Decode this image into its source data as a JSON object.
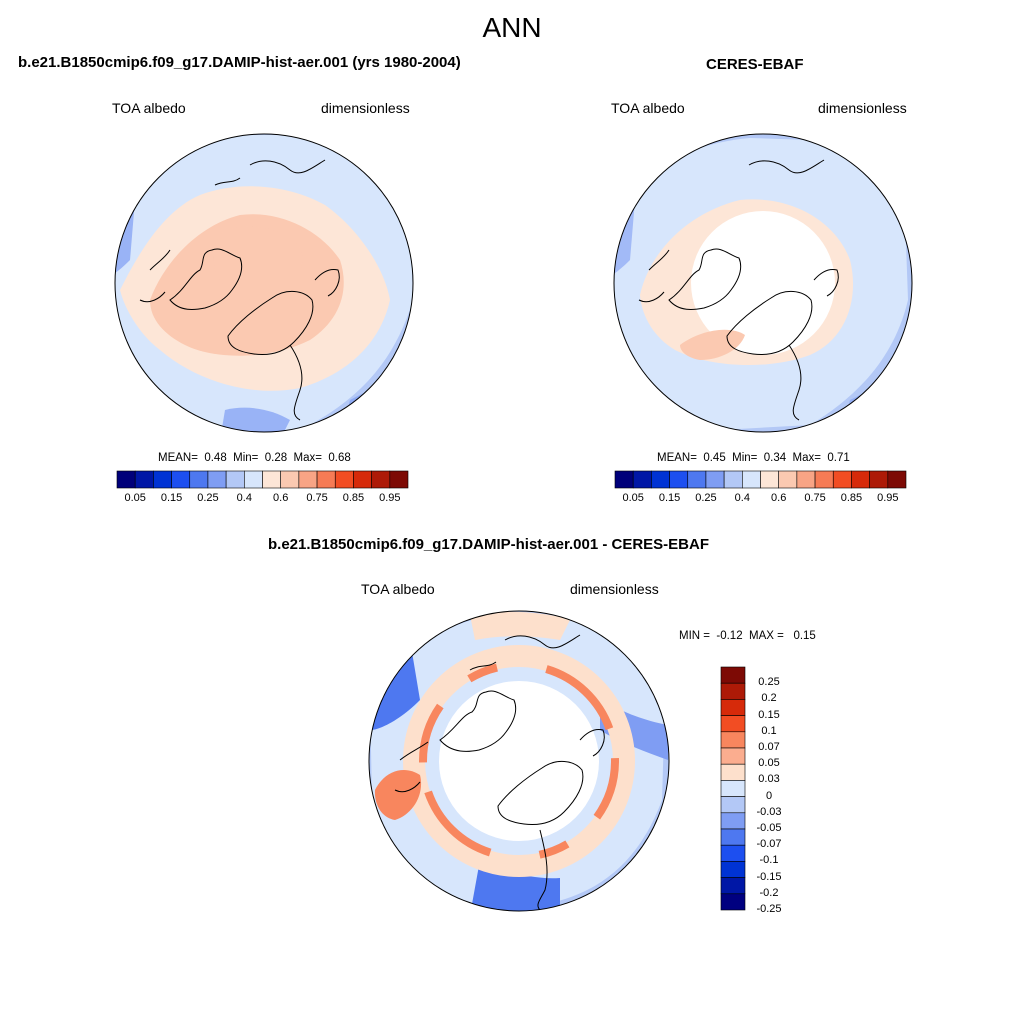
{
  "page": {
    "title": "ANN"
  },
  "panels": [
    {
      "id": "model",
      "title": "b.e21.B1850cmip6.f09_g17.DAMIP-hist-aer.001 (yrs 1980-2004)",
      "left_label": "TOA albedo",
      "right_label": "dimensionless",
      "stats": {
        "mean_label": "MEAN=",
        "mean": "0.48",
        "min_label": "Min=",
        "min": "0.28",
        "max_label": "Max=",
        "max": "0.68"
      },
      "colorbar_ticks": [
        "0.05",
        "0.15",
        "0.25",
        "0.4",
        "0.6",
        "0.75",
        "0.85",
        "0.95"
      ]
    },
    {
      "id": "obs",
      "title": "CERES-EBAF",
      "left_label": "TOA albedo",
      "right_label": "dimensionless",
      "stats": {
        "mean_label": "MEAN=",
        "mean": "0.45",
        "min_label": "Min=",
        "min": "0.34",
        "max_label": "Max=",
        "max": "0.71"
      },
      "colorbar_ticks": [
        "0.05",
        "0.15",
        "0.25",
        "0.4",
        "0.6",
        "0.75",
        "0.85",
        "0.95"
      ]
    },
    {
      "id": "diff",
      "title": "b.e21.B1850cmip6.f09_g17.DAMIP-hist-aer.001 - CERES-EBAF",
      "left_label": "TOA albedo",
      "right_label": "dimensionless",
      "stats": {
        "min_label": "MIN =",
        "min": "-0.12",
        "max_label": "MAX =",
        "max": "0.15"
      },
      "colorbar_ticks": [
        "0.25",
        "0.2",
        "0.15",
        "0.1",
        "0.07",
        "0.05",
        "0.03",
        "0",
        "-0.03",
        "-0.05",
        "-0.07",
        "-0.1",
        "-0.15",
        "-0.2",
        "-0.25"
      ]
    }
  ],
  "colors": {
    "sequential": [
      "#00007a",
      "#0017a6",
      "#0033d4",
      "#1d4ff0",
      "#4e78f0",
      "#7f9df3",
      "#b3c8f6",
      "#d7e6fc",
      "#fde6d7",
      "#fbc9b1",
      "#f8a485",
      "#f67b55",
      "#f24d23",
      "#d62a0a",
      "#ad1a07",
      "#7d0a05"
    ],
    "diverging": [
      "#7d0a05",
      "#ad1a07",
      "#d62a0a",
      "#f24d23",
      "#f8865e",
      "#fbad8f",
      "#fde0cc",
      "#d7e6fc",
      "#b3c8f6",
      "#7f9df3",
      "#4e78f0",
      "#1d4ff0",
      "#0033d4",
      "#0017a6",
      "#000080"
    ],
    "missing": "#ffffff",
    "land_outline": "#000000"
  }
}
